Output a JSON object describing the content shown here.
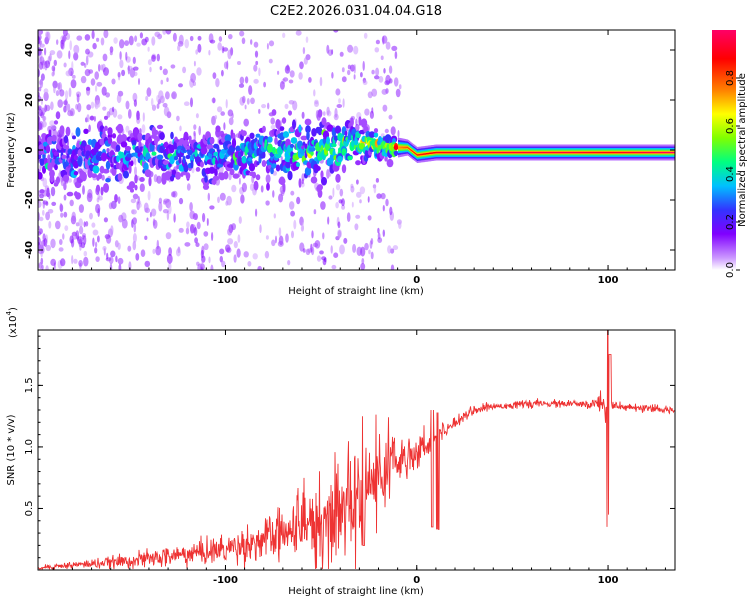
{
  "title": "C2E2.2026.031.04.04.G18",
  "chart_data": [
    {
      "type": "heatmap",
      "xlabel": "Height of straight line (km)",
      "ylabel": "Frequency (Hz)",
      "xlim": [
        -198,
        135
      ],
      "ylim": [
        -48,
        48
      ],
      "x_ticks": [
        -100,
        0,
        100
      ],
      "x_tick_labels": [
        "-100",
        "0",
        "100"
      ],
      "y_ticks": [
        -40,
        -20,
        0,
        20,
        40
      ],
      "y_tick_labels": [
        "-40",
        "-20",
        "0",
        "20",
        "40"
      ],
      "colorbar": {
        "label": "Normalized spectral amplitude",
        "range": [
          0,
          1
        ],
        "ticks": [
          0.0,
          0.2,
          0.4,
          0.6,
          0.8
        ],
        "tick_labels": [
          "0.0",
          "0.2",
          "0.4",
          "0.6",
          "0.8"
        ],
        "colors": [
          "#ffffff",
          "#cc99ff",
          "#8000ff",
          "#3333ff",
          "#00c0ff",
          "#00ff80",
          "#80ff00",
          "#ffff00",
          "#ff8000",
          "#ff0000",
          "#ff0066"
        ]
      },
      "ridge": {
        "description_free": true,
        "x": [
          -198,
          -150,
          -100,
          -80,
          -60,
          -45,
          -35,
          -25,
          -15,
          -5,
          0,
          10,
          40,
          80,
          100,
          135
        ],
        "freq_center": [
          -3,
          -2,
          -2,
          -1,
          0,
          0,
          2,
          3,
          1,
          1,
          -2,
          -1,
          -1,
          -1,
          -1,
          -1
        ],
        "band_halfwidth": [
          9,
          8,
          7,
          8,
          9,
          8,
          7,
          4,
          3,
          2,
          2,
          2,
          2,
          2,
          2,
          2
        ],
        "peak_amplitude": [
          0.2,
          0.25,
          0.3,
          0.35,
          0.4,
          0.45,
          0.5,
          0.55,
          0.65,
          0.8,
          0.85,
          0.9,
          0.95,
          0.95,
          0.9,
          1.0
        ]
      }
    },
    {
      "type": "line",
      "xlabel": "Height of straight line (km)",
      "ylabel": "SNR (10 * v/v)",
      "y_scale_label": "(x10",
      "y_scale_exp": "4",
      "xlim": [
        -198,
        135
      ],
      "ylim": [
        0,
        19500
      ],
      "x_ticks": [
        -100,
        0,
        100
      ],
      "x_tick_labels": [
        "-100",
        "0",
        "100"
      ],
      "y_ticks": [
        5000,
        10000,
        15000
      ],
      "y_tick_labels": [
        "0.5",
        "1.0",
        "1.5"
      ],
      "color": "#ee3333",
      "series": [
        {
          "name": "SNR",
          "x": [
            -198,
            -180,
            -160,
            -140,
            -120,
            -100,
            -90,
            -80,
            -70,
            -60,
            -55,
            -50,
            -45,
            -40,
            -35,
            -30,
            -25,
            -20,
            -15,
            -10,
            -5,
            0,
            5,
            10,
            15,
            20,
            25,
            30,
            40,
            50,
            60,
            70,
            80,
            90,
            95,
            100,
            102,
            105,
            110,
            120,
            130,
            135
          ],
          "y": [
            200,
            400,
            600,
            900,
            1300,
            1700,
            2100,
            2400,
            2800,
            3200,
            3500,
            3800,
            4200,
            4800,
            5500,
            6300,
            7000,
            7500,
            8300,
            8800,
            9300,
            9700,
            10200,
            10800,
            11400,
            12000,
            12600,
            13000,
            13300,
            13400,
            13500,
            13500,
            13500,
            13400,
            13600,
            13300,
            13500,
            13200,
            13200,
            13100,
            13000,
            13000
          ],
          "noise": [
            150,
            250,
            400,
            600,
            800,
            1000,
            1200,
            1500,
            1800,
            2200,
            2500,
            2800,
            3000,
            3300,
            3200,
            3000,
            2800,
            2600,
            2200,
            1800,
            1500,
            1200,
            900,
            700,
            500,
            400,
            350,
            300,
            250,
            250,
            250,
            250,
            250,
            300,
            600,
            1500,
            700,
            400,
            250,
            250,
            250,
            250
          ]
        }
      ],
      "spikes": [
        {
          "x": 100,
          "high": 19500,
          "low": 3500
        },
        {
          "x": 101,
          "high": 17500,
          "low": 4500
        },
        {
          "x": -28,
          "high": 12500,
          "low": 2000
        },
        {
          "x": 8,
          "high": 13000,
          "low": 3500
        },
        {
          "x": 11,
          "high": 12800,
          "low": 3300
        }
      ]
    }
  ]
}
